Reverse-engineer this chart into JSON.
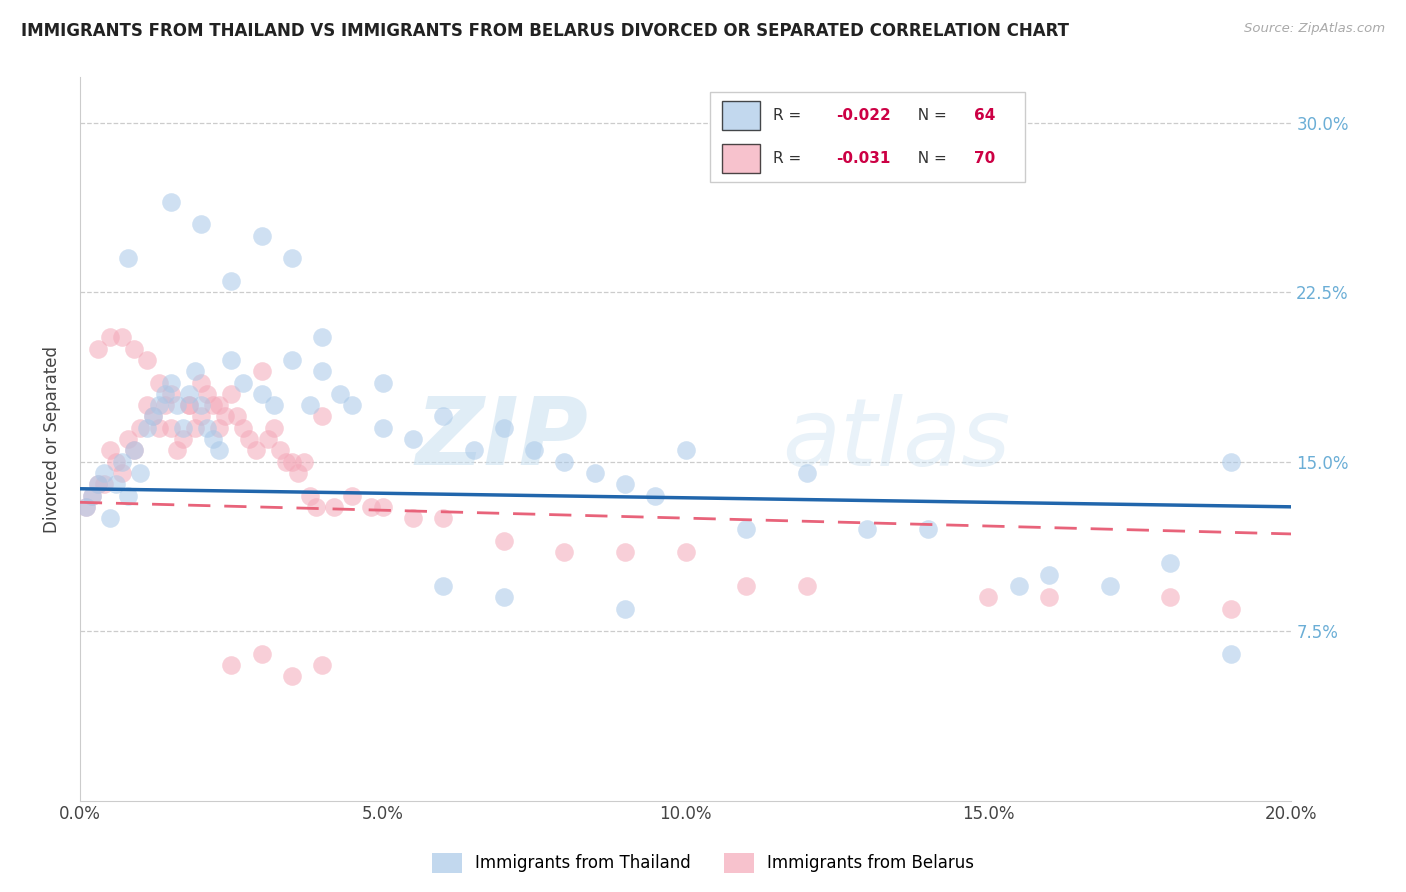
{
  "title": "IMMIGRANTS FROM THAILAND VS IMMIGRANTS FROM BELARUS DIVORCED OR SEPARATED CORRELATION CHART",
  "source": "Source: ZipAtlas.com",
  "ylabel": "Divorced or Separated",
  "legend1_label": "Immigrants from Thailand",
  "legend2_label": "Immigrants from Belarus",
  "R1": -0.022,
  "N1": 64,
  "R2": -0.031,
  "N2": 70,
  "color_thailand": "#a8c8e8",
  "color_belarus": "#f4a8b8",
  "watermark_zip": "ZIP",
  "watermark_atlas": "atlas",
  "xlim": [
    0.0,
    0.2
  ],
  "ylim": [
    0.0,
    0.32
  ],
  "y_ticks": [
    0.075,
    0.15,
    0.225,
    0.3
  ],
  "y_tick_labels": [
    "7.5%",
    "15.0%",
    "22.5%",
    "30.0%"
  ],
  "x_ticks": [
    0.0,
    0.05,
    0.1,
    0.15,
    0.2
  ],
  "x_tick_labels": [
    "0.0%",
    "5.0%",
    "10.0%",
    "15.0%",
    "20.0%"
  ],
  "thailand_x": [
    0.001,
    0.002,
    0.003,
    0.004,
    0.005,
    0.006,
    0.007,
    0.008,
    0.009,
    0.01,
    0.011,
    0.012,
    0.013,
    0.014,
    0.015,
    0.016,
    0.017,
    0.018,
    0.019,
    0.02,
    0.021,
    0.022,
    0.023,
    0.025,
    0.027,
    0.03,
    0.032,
    0.035,
    0.038,
    0.04,
    0.043,
    0.045,
    0.05,
    0.055,
    0.06,
    0.065,
    0.07,
    0.075,
    0.08,
    0.085,
    0.09,
    0.095,
    0.1,
    0.11,
    0.12,
    0.13,
    0.14,
    0.155,
    0.16,
    0.17,
    0.18,
    0.19,
    0.008,
    0.015,
    0.02,
    0.025,
    0.03,
    0.035,
    0.04,
    0.05,
    0.06,
    0.07,
    0.09,
    0.19
  ],
  "thailand_y": [
    0.13,
    0.135,
    0.14,
    0.145,
    0.125,
    0.14,
    0.15,
    0.135,
    0.155,
    0.145,
    0.165,
    0.17,
    0.175,
    0.18,
    0.185,
    0.175,
    0.165,
    0.18,
    0.19,
    0.175,
    0.165,
    0.16,
    0.155,
    0.195,
    0.185,
    0.18,
    0.175,
    0.195,
    0.175,
    0.19,
    0.18,
    0.175,
    0.165,
    0.16,
    0.17,
    0.155,
    0.165,
    0.155,
    0.15,
    0.145,
    0.14,
    0.135,
    0.155,
    0.12,
    0.145,
    0.12,
    0.12,
    0.095,
    0.1,
    0.095,
    0.105,
    0.15,
    0.24,
    0.265,
    0.255,
    0.23,
    0.25,
    0.24,
    0.205,
    0.185,
    0.095,
    0.09,
    0.085,
    0.065
  ],
  "belarus_x": [
    0.001,
    0.002,
    0.003,
    0.004,
    0.005,
    0.006,
    0.007,
    0.008,
    0.009,
    0.01,
    0.011,
    0.012,
    0.013,
    0.014,
    0.015,
    0.016,
    0.017,
    0.018,
    0.019,
    0.02,
    0.021,
    0.022,
    0.023,
    0.024,
    0.025,
    0.026,
    0.027,
    0.028,
    0.029,
    0.03,
    0.031,
    0.032,
    0.033,
    0.034,
    0.035,
    0.036,
    0.037,
    0.038,
    0.039,
    0.04,
    0.042,
    0.045,
    0.048,
    0.05,
    0.055,
    0.06,
    0.07,
    0.08,
    0.09,
    0.1,
    0.11,
    0.12,
    0.15,
    0.16,
    0.18,
    0.19,
    0.003,
    0.005,
    0.007,
    0.009,
    0.011,
    0.013,
    0.015,
    0.018,
    0.02,
    0.023,
    0.025,
    0.03,
    0.035,
    0.04
  ],
  "belarus_y": [
    0.13,
    0.135,
    0.14,
    0.14,
    0.155,
    0.15,
    0.145,
    0.16,
    0.155,
    0.165,
    0.175,
    0.17,
    0.165,
    0.175,
    0.165,
    0.155,
    0.16,
    0.175,
    0.165,
    0.185,
    0.18,
    0.175,
    0.175,
    0.17,
    0.18,
    0.17,
    0.165,
    0.16,
    0.155,
    0.19,
    0.16,
    0.165,
    0.155,
    0.15,
    0.15,
    0.145,
    0.15,
    0.135,
    0.13,
    0.17,
    0.13,
    0.135,
    0.13,
    0.13,
    0.125,
    0.125,
    0.115,
    0.11,
    0.11,
    0.11,
    0.095,
    0.095,
    0.09,
    0.09,
    0.09,
    0.085,
    0.2,
    0.205,
    0.205,
    0.2,
    0.195,
    0.185,
    0.18,
    0.175,
    0.17,
    0.165,
    0.06,
    0.065,
    0.055,
    0.06
  ],
  "line1_x": [
    0.0,
    0.2
  ],
  "line1_y": [
    0.138,
    0.13
  ],
  "line2_x": [
    0.0,
    0.2
  ],
  "line2_y": [
    0.132,
    0.118
  ]
}
